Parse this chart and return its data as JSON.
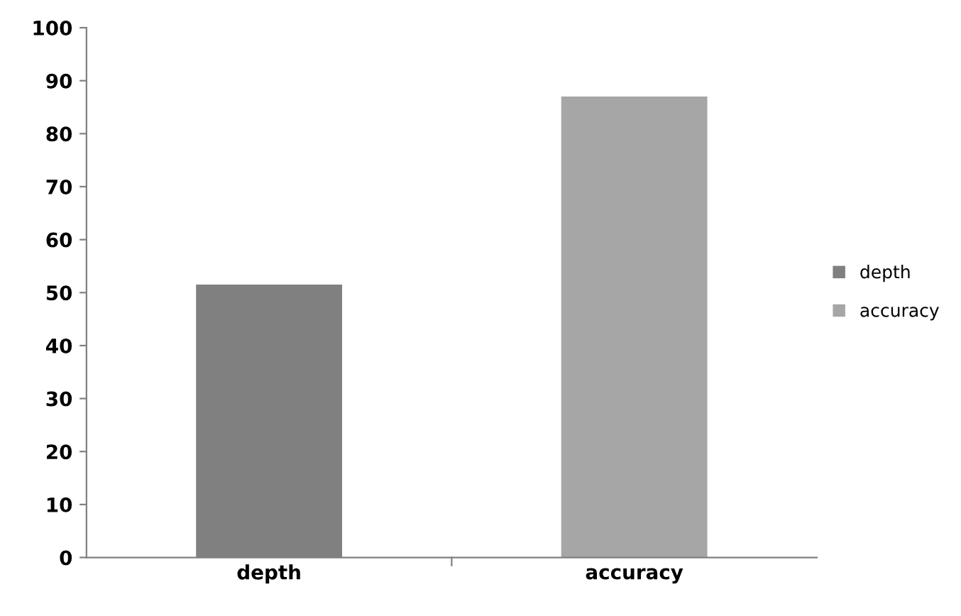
{
  "chart_data": {
    "type": "bar",
    "categories": [
      "depth",
      "accuracy"
    ],
    "series": [
      {
        "name": "depth",
        "color": "#808080",
        "values": [
          51.5,
          null
        ]
      },
      {
        "name": "accuracy",
        "color": "#a6a6a6",
        "values": [
          null,
          87
        ]
      }
    ],
    "ylim": [
      0,
      100
    ],
    "yticks": [
      0,
      10,
      20,
      30,
      40,
      50,
      60,
      70,
      80,
      90,
      100
    ],
    "legend": "right",
    "grid": false
  }
}
